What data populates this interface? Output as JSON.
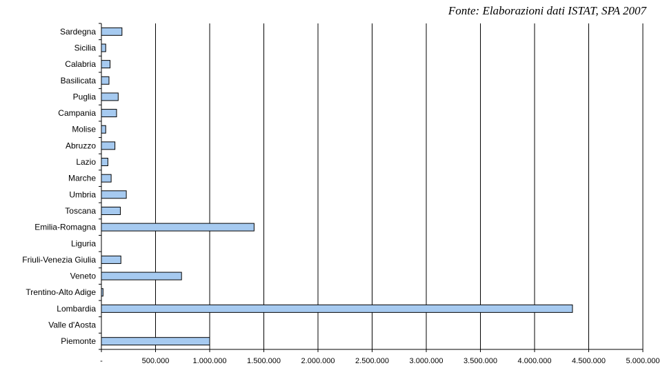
{
  "source_note": "Fonte: Elaborazioni dati ISTAT, SPA 2007",
  "chart_data": {
    "type": "bar",
    "orientation": "horizontal",
    "categories": [
      "Piemonte",
      "Valle d'Aosta",
      "Lombardia",
      "Trentino-Alto Adige",
      "Veneto",
      "Friuli-Venezia Giulia",
      "Liguria",
      "Emilia-Romagna",
      "Toscana",
      "Umbria",
      "Marche",
      "Lazio",
      "Abruzzo",
      "Molise",
      "Campania",
      "Puglia",
      "Basilicata",
      "Calabria",
      "Sicilia",
      "Sardegna"
    ],
    "values": [
      1000000,
      0,
      4350000,
      15000,
      740000,
      180000,
      0,
      1410000,
      175000,
      230000,
      90000,
      60000,
      125000,
      40000,
      140000,
      155000,
      70000,
      80000,
      40000,
      190000
    ],
    "xlim": [
      0,
      5000000
    ],
    "x_ticks": [
      0,
      500000,
      1000000,
      1500000,
      2000000,
      2500000,
      3000000,
      3500000,
      4000000,
      4500000,
      5000000
    ],
    "x_tick_labels": [
      "-",
      "500.000",
      "1.000.000",
      "1.500.000",
      "2.000.000",
      "2.500.000",
      "3.000.000",
      "3.500.000",
      "4.000.000",
      "4.500.000",
      "5.000.000"
    ],
    "grid": "vertical major gridlines",
    "bar_fill": "#a6caf0",
    "bar_stroke": "#000000"
  }
}
